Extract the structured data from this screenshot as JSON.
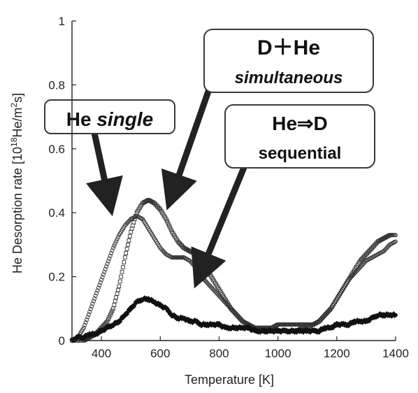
{
  "chart_data": {
    "type": "scatter",
    "title": "",
    "xlabel": "Temperature [K]",
    "ylabel_prefix": "He Desorption rate [10",
    "ylabel_exp1": "18",
    "ylabel_mid": "He/m",
    "ylabel_exp2": "2",
    "ylabel_suffix": "s]",
    "xlim": [
      300,
      1400
    ],
    "ylim": [
      0,
      1
    ],
    "x_ticks": [
      400,
      600,
      800,
      1000,
      1200,
      1400
    ],
    "y_ticks": [
      0,
      0.2,
      0.4,
      0.6,
      0.8,
      1
    ],
    "y_tick_labels": [
      "0",
      "0.2",
      "0.4",
      "0.6",
      "0.8",
      "1"
    ],
    "grid": false,
    "series": [
      {
        "marker": "circle",
        "color": "#333333",
        "points": [
          [
            300,
            0.0
          ],
          [
            320,
            0.01
          ],
          [
            340,
            0.04
          ],
          [
            360,
            0.09
          ],
          [
            380,
            0.14
          ],
          [
            400,
            0.19
          ],
          [
            420,
            0.24
          ],
          [
            440,
            0.29
          ],
          [
            460,
            0.33
          ],
          [
            480,
            0.36
          ],
          [
            500,
            0.38
          ],
          [
            520,
            0.39
          ],
          [
            540,
            0.38
          ],
          [
            560,
            0.35
          ],
          [
            580,
            0.32
          ],
          [
            600,
            0.29
          ],
          [
            620,
            0.27
          ],
          [
            640,
            0.26
          ],
          [
            660,
            0.26
          ],
          [
            680,
            0.26
          ],
          [
            700,
            0.25
          ],
          [
            720,
            0.23
          ],
          [
            740,
            0.2
          ],
          [
            760,
            0.18
          ],
          [
            780,
            0.16
          ],
          [
            800,
            0.14
          ],
          [
            820,
            0.12
          ],
          [
            840,
            0.1
          ],
          [
            860,
            0.08
          ],
          [
            880,
            0.06
          ],
          [
            900,
            0.05
          ],
          [
            920,
            0.04
          ],
          [
            940,
            0.03
          ],
          [
            960,
            0.03
          ],
          [
            980,
            0.03
          ],
          [
            1000,
            0.03
          ],
          [
            1020,
            0.03
          ],
          [
            1040,
            0.03
          ],
          [
            1060,
            0.03
          ],
          [
            1080,
            0.04
          ],
          [
            1100,
            0.04
          ],
          [
            1120,
            0.05
          ],
          [
            1140,
            0.06
          ],
          [
            1160,
            0.08
          ],
          [
            1180,
            0.1
          ],
          [
            1200,
            0.13
          ],
          [
            1220,
            0.16
          ],
          [
            1240,
            0.19
          ],
          [
            1260,
            0.21
          ],
          [
            1280,
            0.23
          ],
          [
            1300,
            0.25
          ],
          [
            1320,
            0.26
          ],
          [
            1340,
            0.27
          ],
          [
            1360,
            0.28
          ],
          [
            1380,
            0.3
          ],
          [
            1400,
            0.31
          ]
        ]
      },
      {
        "marker": "square",
        "color": "#333333",
        "points": [
          [
            300,
            0.0
          ],
          [
            340,
            0.0
          ],
          [
            360,
            0.01
          ],
          [
            380,
            0.02
          ],
          [
            400,
            0.04
          ],
          [
            420,
            0.06
          ],
          [
            440,
            0.1
          ],
          [
            460,
            0.17
          ],
          [
            480,
            0.26
          ],
          [
            500,
            0.34
          ],
          [
            520,
            0.4
          ],
          [
            540,
            0.43
          ],
          [
            560,
            0.44
          ],
          [
            580,
            0.43
          ],
          [
            600,
            0.41
          ],
          [
            620,
            0.38
          ],
          [
            640,
            0.34
          ],
          [
            660,
            0.31
          ],
          [
            680,
            0.29
          ],
          [
            700,
            0.28
          ],
          [
            720,
            0.27
          ],
          [
            740,
            0.25
          ],
          [
            760,
            0.22
          ],
          [
            780,
            0.19
          ],
          [
            800,
            0.16
          ],
          [
            820,
            0.13
          ],
          [
            840,
            0.1
          ],
          [
            860,
            0.08
          ],
          [
            880,
            0.06
          ],
          [
            900,
            0.05
          ],
          [
            920,
            0.04
          ],
          [
            940,
            0.04
          ],
          [
            960,
            0.04
          ],
          [
            980,
            0.04
          ],
          [
            1000,
            0.05
          ],
          [
            1020,
            0.05
          ],
          [
            1040,
            0.05
          ],
          [
            1060,
            0.05
          ],
          [
            1080,
            0.05
          ],
          [
            1100,
            0.05
          ],
          [
            1120,
            0.05
          ],
          [
            1140,
            0.06
          ],
          [
            1160,
            0.08
          ],
          [
            1180,
            0.1
          ],
          [
            1200,
            0.13
          ],
          [
            1220,
            0.16
          ],
          [
            1240,
            0.19
          ],
          [
            1260,
            0.22
          ],
          [
            1280,
            0.25
          ],
          [
            1300,
            0.27
          ],
          [
            1320,
            0.29
          ],
          [
            1340,
            0.31
          ],
          [
            1360,
            0.32
          ],
          [
            1380,
            0.33
          ],
          [
            1400,
            0.33
          ]
        ]
      },
      {
        "marker": "filled-diamond",
        "color": "#111111",
        "points": [
          [
            300,
            0.0
          ],
          [
            320,
            0.01
          ],
          [
            340,
            0.01
          ],
          [
            360,
            0.02
          ],
          [
            380,
            0.02
          ],
          [
            400,
            0.03
          ],
          [
            420,
            0.04
          ],
          [
            440,
            0.05
          ],
          [
            460,
            0.06
          ],
          [
            480,
            0.08
          ],
          [
            500,
            0.1
          ],
          [
            520,
            0.12
          ],
          [
            540,
            0.13
          ],
          [
            560,
            0.13
          ],
          [
            580,
            0.12
          ],
          [
            600,
            0.11
          ],
          [
            620,
            0.1
          ],
          [
            640,
            0.08
          ],
          [
            660,
            0.07
          ],
          [
            680,
            0.07
          ],
          [
            700,
            0.06
          ],
          [
            720,
            0.06
          ],
          [
            740,
            0.05
          ],
          [
            760,
            0.05
          ],
          [
            780,
            0.05
          ],
          [
            800,
            0.05
          ],
          [
            820,
            0.04
          ],
          [
            840,
            0.04
          ],
          [
            860,
            0.04
          ],
          [
            880,
            0.04
          ],
          [
            900,
            0.04
          ],
          [
            920,
            0.03
          ],
          [
            940,
            0.03
          ],
          [
            960,
            0.03
          ],
          [
            980,
            0.03
          ],
          [
            1000,
            0.03
          ],
          [
            1020,
            0.03
          ],
          [
            1040,
            0.03
          ],
          [
            1060,
            0.03
          ],
          [
            1080,
            0.03
          ],
          [
            1100,
            0.03
          ],
          [
            1120,
            0.03
          ],
          [
            1140,
            0.03
          ],
          [
            1160,
            0.04
          ],
          [
            1180,
            0.04
          ],
          [
            1200,
            0.05
          ],
          [
            1220,
            0.05
          ],
          [
            1240,
            0.05
          ],
          [
            1260,
            0.06
          ],
          [
            1280,
            0.06
          ],
          [
            1300,
            0.06
          ],
          [
            1320,
            0.07
          ],
          [
            1340,
            0.08
          ],
          [
            1360,
            0.08
          ],
          [
            1380,
            0.08
          ],
          [
            1400,
            0.08
          ]
        ]
      }
    ],
    "annotations": [
      {
        "id": "he-single",
        "lines": [
          [
            {
              "text": "He ",
              "italic": false
            },
            {
              "text": "single",
              "italic": true
            }
          ]
        ]
      },
      {
        "id": "d-he-simultaneous",
        "lines": [
          [
            {
              "text": "D＋He",
              "italic": false
            }
          ],
          [
            {
              "text": "simultaneous",
              "italic": true
            }
          ]
        ]
      },
      {
        "id": "he-d-sequential",
        "lines": [
          [
            {
              "text": "He⇒D",
              "italic": false
            }
          ],
          [
            {
              "text": "sequential",
              "italic": false
            }
          ]
        ]
      }
    ]
  }
}
